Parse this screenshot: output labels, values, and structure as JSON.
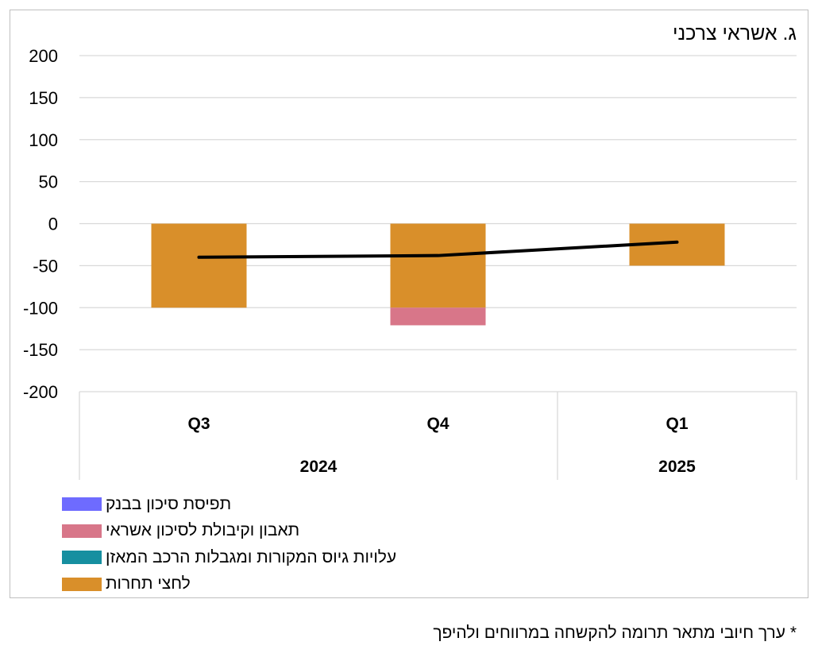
{
  "chart_data": {
    "type": "bar",
    "stacked": true,
    "title": "ג. אשראי צרכני",
    "categories": [
      "Q3",
      "Q4",
      "Q1"
    ],
    "category_groups": [
      {
        "label": "2024",
        "span": 2
      },
      {
        "label": "2025",
        "span": 1
      }
    ],
    "ylim": [
      -200,
      200
    ],
    "yticks": [
      200,
      150,
      100,
      50,
      0,
      -50,
      -100,
      -150,
      -200
    ],
    "grid": true,
    "legend_position": "bottom-left",
    "series": [
      {
        "name": "תפיסת סיכון בבנק",
        "type": "bar",
        "color": "#6E6BFF",
        "values": [
          0,
          0,
          0
        ]
      },
      {
        "name": "תאבון וקיבולת לסיכון אשראי",
        "type": "bar",
        "color": "#D87689",
        "values": [
          0,
          -21,
          0
        ]
      },
      {
        "name": "עלויות גיוס המקורות ומגבלות הרכב המאזן",
        "type": "bar",
        "color": "#168FA0",
        "values": [
          0,
          0,
          0
        ]
      },
      {
        "name": "לחצי תחרות",
        "type": "bar",
        "color": "#D98F2A",
        "values": [
          -100,
          -100,
          -50
        ]
      },
      {
        "type": "line",
        "color": "#000000",
        "values": [
          -40,
          -38,
          -22
        ]
      }
    ]
  },
  "footnote": "* ערך חיובי מתאר תרומה להקשחה במרווחים ולהיפך"
}
